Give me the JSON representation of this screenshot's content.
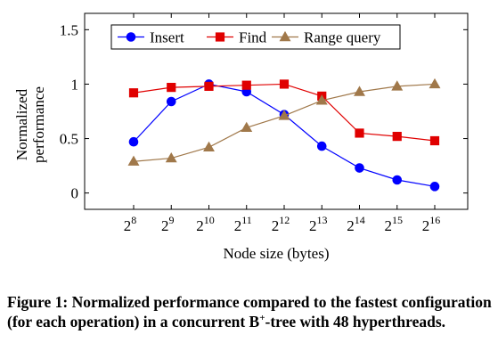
{
  "chart_data": {
    "type": "line",
    "categories": [
      "2^8",
      "2^9",
      "2^10",
      "2^11",
      "2^12",
      "2^13",
      "2^14",
      "2^15",
      "2^16"
    ],
    "x_exponents": [
      8,
      9,
      10,
      11,
      12,
      13,
      14,
      15,
      16
    ],
    "x_base": "2",
    "xlabel": "Node size (bytes)",
    "ylabel": "Normalized performance",
    "ylabel_lines": [
      "Normalized",
      "performance"
    ],
    "ylim": [
      -0.15,
      1.65
    ],
    "yticks": [
      0,
      0.5,
      1,
      1.5
    ],
    "ytick_labels": [
      "0",
      "0.5",
      "1",
      "1.5"
    ],
    "grid": false,
    "legend_position": "top-center",
    "series": [
      {
        "name": "Insert",
        "color": "#0000ff",
        "marker": "circle",
        "values": [
          0.47,
          0.84,
          1.0,
          0.93,
          0.72,
          0.43,
          0.23,
          0.12,
          0.06
        ]
      },
      {
        "name": "Find",
        "color": "#e00000",
        "marker": "square",
        "values": [
          0.92,
          0.97,
          0.98,
          0.99,
          1.0,
          0.89,
          0.55,
          0.52,
          0.48
        ]
      },
      {
        "name": "Range query",
        "color": "#a0784a",
        "marker": "triangle",
        "values": [
          0.29,
          0.32,
          0.42,
          0.6,
          0.71,
          0.85,
          0.93,
          0.98,
          1.0
        ]
      }
    ]
  },
  "caption": {
    "prefix": "Figure 1: Normalized performance compared to the fastest configuration (for each operation) in a concurrent B",
    "superscript": "+",
    "suffix": "-tree with 48 hyperthreads."
  }
}
